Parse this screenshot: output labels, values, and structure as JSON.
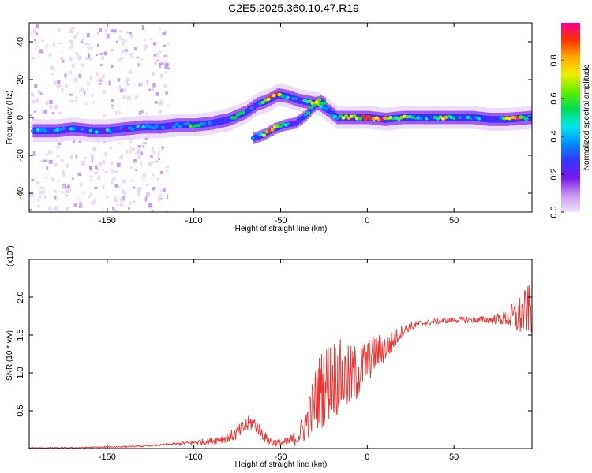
{
  "figure": {
    "title": "C2E5.2025.360.10.47.R19"
  },
  "chart_data": [
    {
      "type": "heatmap",
      "xlabel": "Height of straight line (km)",
      "ylabel": "Frequency (Hz)",
      "xlim": [
        -195,
        95
      ],
      "ylim": [
        -50,
        50
      ],
      "xticks": [
        -150,
        -100,
        -50,
        0,
        50
      ],
      "yticks": [
        -40,
        -20,
        0,
        20,
        40
      ],
      "colorbar": {
        "label": "Normalized spectral amplitude",
        "ticks": [
          0.0,
          0.2,
          0.4,
          0.6,
          0.8
        ],
        "range": [
          0,
          1
        ],
        "colormap": [
          "#f2e4fa",
          "#c596f0",
          "#7a18ea",
          "#3535ff",
          "#0090ff",
          "#00e8e8",
          "#00dd55",
          "#66ee00",
          "#eeee00",
          "#ffaa00",
          "#ff3300",
          "#ff0099"
        ]
      },
      "ridge_main": [
        [
          -193,
          -7
        ],
        [
          -180,
          -7
        ],
        [
          -170,
          -6
        ],
        [
          -160,
          -7
        ],
        [
          -150,
          -7
        ],
        [
          -140,
          -6
        ],
        [
          -130,
          -5
        ],
        [
          -120,
          -5
        ],
        [
          -110,
          -4
        ],
        [
          -100,
          -4
        ],
        [
          -90,
          -3
        ],
        [
          -80,
          -1
        ],
        [
          -70,
          3
        ],
        [
          -64,
          7
        ],
        [
          -58,
          9
        ],
        [
          -52,
          12
        ],
        [
          -46,
          11
        ],
        [
          -40,
          9
        ],
        [
          -34,
          8
        ],
        [
          -28,
          7
        ],
        [
          -22,
          3
        ],
        [
          -18,
          0
        ],
        [
          -10,
          0
        ],
        [
          0,
          0
        ],
        [
          10,
          -1
        ],
        [
          20,
          0
        ],
        [
          30,
          0
        ],
        [
          40,
          0
        ],
        [
          50,
          0
        ],
        [
          60,
          0
        ],
        [
          70,
          -1
        ],
        [
          80,
          -1
        ],
        [
          94,
          0
        ]
      ],
      "ridge_secondary": [
        [
          -66,
          -11
        ],
        [
          -60,
          -9
        ],
        [
          -54,
          -6
        ],
        [
          -48,
          -4
        ],
        [
          -42,
          -3
        ],
        [
          -36,
          1
        ],
        [
          -32,
          5
        ],
        [
          -28,
          9
        ],
        [
          -24,
          7
        ]
      ],
      "peak_zones": [
        [
          -100,
          -3,
          0.55
        ],
        [
          -75,
          -1,
          0.6
        ],
        [
          -55,
          -6,
          0.95
        ],
        [
          -30,
          8,
          0.7
        ],
        [
          -10,
          0,
          0.9
        ],
        [
          0,
          0,
          0.95
        ],
        [
          8,
          -1,
          1.0
        ],
        [
          20,
          0,
          0.75
        ],
        [
          45,
          0,
          0.7
        ],
        [
          85,
          -1,
          0.9
        ]
      ]
    },
    {
      "type": "line",
      "xlabel": "Height of straight line (km)",
      "ylabel": "SNR (10 * v/v)",
      "exponent_label": "(x10",
      "exponent_power": "4",
      "exponent_close": ")",
      "xlim": [
        -195,
        95
      ],
      "ylim": [
        0,
        2.5
      ],
      "xticks": [
        -150,
        -100,
        -50,
        0,
        50
      ],
      "yticks": [
        0.5,
        1.0,
        1.5,
        2.0
      ],
      "color": "#ee3333",
      "series": [
        {
          "envelope": [
            [
              -195,
              0.01
            ],
            [
              -170,
              0.01
            ],
            [
              -150,
              0.02
            ],
            [
              -130,
              0.03
            ],
            [
              -110,
              0.06
            ],
            [
              -100,
              0.08
            ],
            [
              -90,
              0.1
            ],
            [
              -80,
              0.15
            ],
            [
              -75,
              0.2
            ],
            [
              -70,
              0.3
            ],
            [
              -66,
              0.35
            ],
            [
              -62,
              0.25
            ],
            [
              -58,
              0.12
            ],
            [
              -54,
              0.08
            ],
            [
              -48,
              0.07
            ],
            [
              -44,
              0.1
            ],
            [
              -40,
              0.16
            ],
            [
              -36,
              0.3
            ],
            [
              -32,
              0.5
            ],
            [
              -28,
              0.75
            ],
            [
              -24,
              0.85
            ],
            [
              -20,
              0.95
            ],
            [
              -16,
              0.95
            ],
            [
              -12,
              0.9
            ],
            [
              -8,
              0.95
            ],
            [
              -4,
              1.05
            ],
            [
              0,
              1.15
            ],
            [
              4,
              1.25
            ],
            [
              8,
              1.3
            ],
            [
              12,
              1.35
            ],
            [
              16,
              1.45
            ],
            [
              20,
              1.55
            ],
            [
              24,
              1.6
            ],
            [
              30,
              1.65
            ],
            [
              40,
              1.68
            ],
            [
              50,
              1.7
            ],
            [
              60,
              1.7
            ],
            [
              70,
              1.7
            ],
            [
              80,
              1.72
            ],
            [
              88,
              1.75
            ],
            [
              94,
              1.85
            ]
          ],
          "spread": [
            [
              -195,
              0.005
            ],
            [
              -120,
              0.01
            ],
            [
              -100,
              0.03
            ],
            [
              -80,
              0.07
            ],
            [
              -70,
              0.12
            ],
            [
              -60,
              0.08
            ],
            [
              -50,
              0.05
            ],
            [
              -40,
              0.12
            ],
            [
              -35,
              0.25
            ],
            [
              -30,
              0.45
            ],
            [
              -25,
              0.55
            ],
            [
              -20,
              0.55
            ],
            [
              -15,
              0.5
            ],
            [
              -10,
              0.45
            ],
            [
              -5,
              0.4
            ],
            [
              0,
              0.3
            ],
            [
              10,
              0.2
            ],
            [
              20,
              0.08
            ],
            [
              30,
              0.04
            ],
            [
              50,
              0.04
            ],
            [
              70,
              0.05
            ],
            [
              80,
              0.1
            ],
            [
              86,
              0.25
            ],
            [
              94,
              0.35
            ]
          ]
        }
      ]
    }
  ]
}
